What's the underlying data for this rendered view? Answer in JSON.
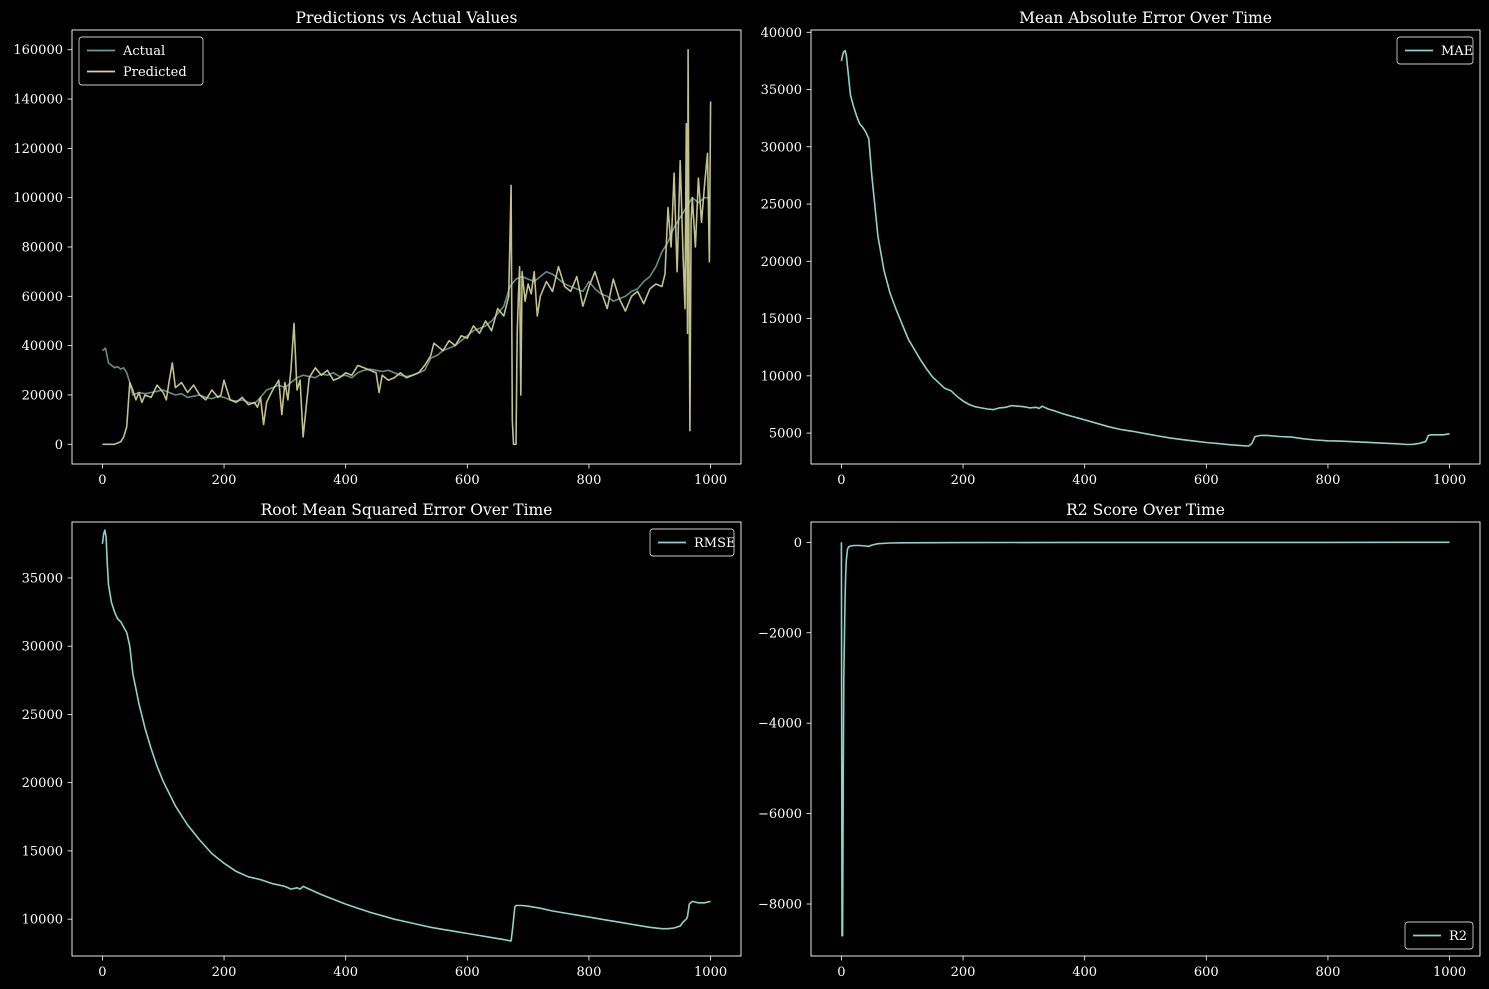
{
  "figure": {
    "background": "#000000",
    "foreground": "#ffffff"
  },
  "chart_data": [
    {
      "type": "line",
      "title": "Predictions vs Actual Values",
      "xlabel": "",
      "ylabel": "",
      "xlim": [
        -50,
        1050
      ],
      "ylim": [
        -8000,
        168000
      ],
      "xticks": [
        0,
        200,
        400,
        600,
        800,
        1000
      ],
      "yticks": [
        0,
        20000,
        40000,
        60000,
        80000,
        100000,
        120000,
        140000,
        160000
      ],
      "grid": false,
      "legend": "upper-left",
      "series": [
        {
          "name": "Actual",
          "color": "#6a9f93",
          "x": [
            0,
            5,
            10,
            15,
            20,
            25,
            30,
            35,
            40,
            45,
            50,
            60,
            70,
            80,
            90,
            100,
            110,
            120,
            130,
            140,
            150,
            160,
            170,
            180,
            190,
            200,
            210,
            220,
            230,
            240,
            250,
            260,
            270,
            280,
            290,
            300,
            310,
            320,
            330,
            340,
            350,
            360,
            370,
            380,
            390,
            400,
            410,
            420,
            430,
            440,
            450,
            460,
            470,
            480,
            490,
            500,
            510,
            520,
            530,
            540,
            550,
            560,
            570,
            580,
            590,
            600,
            610,
            620,
            630,
            640,
            650,
            660,
            670,
            680,
            690,
            700,
            710,
            720,
            730,
            740,
            750,
            760,
            770,
            780,
            790,
            800,
            810,
            820,
            830,
            840,
            850,
            860,
            870,
            880,
            890,
            900,
            910,
            920,
            930,
            940,
            950,
            960,
            970,
            980,
            990,
            1000
          ],
          "values": [
            38000,
            39000,
            33000,
            32000,
            31000,
            31500,
            30500,
            31000,
            29000,
            25000,
            20000,
            21000,
            20500,
            21000,
            21500,
            22000,
            21000,
            20000,
            20500,
            19000,
            19500,
            20000,
            19000,
            18500,
            19500,
            19000,
            18000,
            17500,
            18000,
            17000,
            16500,
            19000,
            22000,
            23000,
            24000,
            23000,
            25000,
            27000,
            28000,
            27500,
            27000,
            28500,
            28000,
            29000,
            27500,
            28000,
            27000,
            29000,
            30000,
            30500,
            30000,
            29500,
            30000,
            29000,
            28000,
            27500,
            28000,
            29000,
            30000,
            35000,
            36000,
            38000,
            39000,
            40000,
            42000,
            44000,
            46000,
            47000,
            48000,
            50000,
            53000,
            56000,
            64000,
            67000,
            68000,
            67000,
            66000,
            68000,
            70000,
            69000,
            67000,
            65000,
            64000,
            63000,
            62000,
            66000,
            63000,
            61000,
            60000,
            58000,
            59000,
            60000,
            62000,
            63000,
            66000,
            68000,
            72000,
            78000,
            82000,
            88000,
            92000,
            96000,
            100000,
            98000,
            100000,
            100000
          ]
        },
        {
          "name": "Predicted",
          "color": "#d6d69a",
          "x": [
            0,
            10,
            20,
            30,
            35,
            40,
            45,
            50,
            55,
            60,
            65,
            70,
            80,
            90,
            100,
            105,
            110,
            115,
            120,
            130,
            140,
            150,
            160,
            170,
            180,
            190,
            195,
            200,
            210,
            220,
            230,
            240,
            250,
            255,
            260,
            265,
            270,
            280,
            290,
            295,
            300,
            305,
            310,
            315,
            320,
            325,
            330,
            340,
            350,
            360,
            370,
            380,
            390,
            400,
            410,
            420,
            430,
            440,
            450,
            455,
            460,
            470,
            480,
            490,
            500,
            510,
            520,
            530,
            540,
            545,
            550,
            560,
            570,
            580,
            590,
            600,
            610,
            620,
            630,
            640,
            650,
            660,
            668,
            672,
            674,
            676,
            678,
            680,
            682,
            684,
            686,
            688,
            690,
            695,
            700,
            705,
            710,
            715,
            720,
            730,
            740,
            750,
            760,
            770,
            780,
            790,
            800,
            810,
            820,
            830,
            840,
            850,
            860,
            870,
            880,
            890,
            900,
            910,
            920,
            925,
            930,
            935,
            940,
            945,
            950,
            955,
            958,
            960,
            962,
            963,
            964,
            966,
            968,
            970,
            975,
            980,
            985,
            990,
            995,
            998,
            1000
          ],
          "values": [
            0,
            0,
            0,
            1000,
            3000,
            7000,
            25000,
            22000,
            18000,
            21000,
            17000,
            20000,
            19000,
            24000,
            21000,
            18000,
            26000,
            33000,
            23000,
            25000,
            21000,
            24000,
            20000,
            18000,
            22000,
            19000,
            20000,
            26000,
            18000,
            17000,
            19000,
            16000,
            17000,
            15000,
            19000,
            8000,
            17000,
            22000,
            26000,
            12000,
            25000,
            18000,
            30000,
            49000,
            22000,
            26000,
            3000,
            27000,
            31000,
            28000,
            30000,
            26000,
            27000,
            29000,
            28000,
            32000,
            31000,
            30000,
            29000,
            21000,
            28000,
            26000,
            27000,
            29000,
            27000,
            28000,
            29000,
            32000,
            36000,
            41000,
            40000,
            38000,
            42000,
            40000,
            44000,
            43000,
            48000,
            45000,
            50000,
            46000,
            55000,
            52000,
            60000,
            105000,
            10000,
            0,
            0,
            0,
            45000,
            60000,
            72000,
            20000,
            70000,
            58000,
            65000,
            61000,
            70000,
            52000,
            60000,
            66000,
            62000,
            72000,
            64000,
            62000,
            68000,
            56000,
            64000,
            70000,
            62000,
            55000,
            67000,
            59000,
            54000,
            60000,
            62000,
            57000,
            63000,
            65000,
            64000,
            69000,
            96000,
            80000,
            110000,
            70000,
            115000,
            75000,
            55000,
            130000,
            45000,
            160000,
            100000,
            5500,
            90000,
            100000,
            80000,
            108000,
            90000,
            105000,
            118000,
            74000,
            139000
          ]
        }
      ]
    },
    {
      "type": "line",
      "title": "Mean Absolute Error Over Time",
      "xlabel": "",
      "ylabel": "",
      "xlim": [
        -50,
        1050
      ],
      "ylim": [
        2300,
        40200
      ],
      "xticks": [
        0,
        200,
        400,
        600,
        800,
        1000
      ],
      "yticks": [
        5000,
        10000,
        15000,
        20000,
        25000,
        30000,
        35000,
        40000
      ],
      "grid": false,
      "legend": "upper-right",
      "series": [
        {
          "name": "MAE",
          "color": "#8dd3c7",
          "x": [
            0,
            2,
            4,
            6,
            8,
            10,
            15,
            20,
            25,
            30,
            35,
            40,
            45,
            50,
            60,
            70,
            80,
            90,
            100,
            110,
            120,
            130,
            140,
            150,
            160,
            170,
            180,
            190,
            200,
            210,
            220,
            230,
            240,
            250,
            260,
            270,
            280,
            290,
            300,
            310,
            320,
            325,
            330,
            340,
            350,
            360,
            370,
            380,
            390,
            400,
            420,
            440,
            460,
            480,
            500,
            520,
            540,
            560,
            580,
            600,
            620,
            640,
            660,
            670,
            675,
            680,
            690,
            700,
            720,
            740,
            760,
            780,
            800,
            820,
            840,
            860,
            880,
            900,
            920,
            930,
            940,
            950,
            960,
            962,
            965,
            970,
            980,
            990,
            1000
          ],
          "values": [
            37500,
            38000,
            38300,
            38400,
            38000,
            37000,
            34500,
            33500,
            32700,
            32000,
            31700,
            31300,
            30700,
            27500,
            22200,
            19200,
            17200,
            15800,
            14500,
            13200,
            12300,
            11400,
            10600,
            9900,
            9400,
            8900,
            8700,
            8200,
            7800,
            7500,
            7300,
            7200,
            7100,
            7050,
            7200,
            7250,
            7400,
            7350,
            7300,
            7200,
            7250,
            7150,
            7350,
            7100,
            6950,
            6750,
            6600,
            6450,
            6300,
            6150,
            5850,
            5550,
            5300,
            5150,
            4950,
            4750,
            4580,
            4430,
            4300,
            4180,
            4080,
            3980,
            3900,
            3870,
            4100,
            4700,
            4800,
            4800,
            4700,
            4650,
            4500,
            4400,
            4330,
            4300,
            4250,
            4200,
            4150,
            4100,
            4050,
            4000,
            4020,
            4100,
            4250,
            4400,
            4800,
            4850,
            4850,
            4850,
            4950
          ]
        }
      ]
    },
    {
      "type": "line",
      "title": "Root Mean Squared Error Over Time",
      "xlabel": "",
      "ylabel": "",
      "xlim": [
        -50,
        1050
      ],
      "ylim": [
        7300,
        39100
      ],
      "xticks": [
        0,
        200,
        400,
        600,
        800,
        1000
      ],
      "yticks": [
        10000,
        15000,
        20000,
        25000,
        30000,
        35000
      ],
      "grid": false,
      "legend": "upper-right",
      "series": [
        {
          "name": "RMSE",
          "color": "#8dd3c7",
          "x": [
            0,
            2,
            4,
            6,
            8,
            10,
            15,
            20,
            25,
            30,
            35,
            40,
            45,
            50,
            60,
            70,
            80,
            90,
            100,
            120,
            140,
            160,
            180,
            200,
            220,
            240,
            260,
            280,
            300,
            310,
            320,
            325,
            330,
            340,
            360,
            380,
            400,
            420,
            440,
            460,
            480,
            500,
            520,
            540,
            560,
            580,
            600,
            620,
            640,
            660,
            672,
            675,
            678,
            680,
            690,
            700,
            720,
            740,
            760,
            780,
            800,
            820,
            840,
            860,
            880,
            900,
            920,
            930,
            940,
            950,
            955,
            960,
            962,
            965,
            970,
            980,
            990,
            1000
          ],
          "values": [
            37500,
            38200,
            38500,
            38000,
            36000,
            34500,
            33200,
            32500,
            32000,
            31800,
            31400,
            31000,
            30000,
            28000,
            25800,
            24000,
            22500,
            21200,
            20100,
            18300,
            16900,
            15800,
            14800,
            14100,
            13500,
            13100,
            12900,
            12600,
            12400,
            12200,
            12300,
            12200,
            12400,
            12200,
            11800,
            11450,
            11100,
            10800,
            10500,
            10250,
            10000,
            9800,
            9600,
            9400,
            9250,
            9100,
            8950,
            8800,
            8650,
            8500,
            8400,
            9500,
            10900,
            11000,
            11000,
            10950,
            10800,
            10600,
            10450,
            10300,
            10150,
            10000,
            9850,
            9700,
            9550,
            9400,
            9300,
            9300,
            9350,
            9500,
            9800,
            10000,
            10200,
            11100,
            11300,
            11200,
            11200,
            11300
          ]
        }
      ]
    },
    {
      "type": "line",
      "title": "R2 Score Over Time",
      "xlabel": "",
      "ylabel": "",
      "xlim": [
        -50,
        1050
      ],
      "ylim": [
        -9150,
        450
      ],
      "xticks": [
        0,
        200,
        400,
        600,
        800,
        1000
      ],
      "yticks": [
        -8000,
        -6000,
        -4000,
        -2000,
        0
      ],
      "grid": false,
      "legend": "lower-right",
      "series": [
        {
          "name": "R2",
          "color": "#8dd3c7",
          "x": [
            0,
            1,
            2,
            3,
            4,
            5,
            6,
            7,
            8,
            10,
            12,
            15,
            20,
            30,
            40,
            45,
            50,
            60,
            80,
            100,
            200,
            400,
            600,
            800,
            1000
          ],
          "values": [
            0,
            -8700,
            -8700,
            -5500,
            -3000,
            -2000,
            -1200,
            -700,
            -400,
            -150,
            -100,
            -80,
            -70,
            -70,
            -80,
            -90,
            -60,
            -30,
            -15,
            -10,
            -5,
            -2,
            -1,
            -1,
            0
          ]
        }
      ]
    }
  ]
}
